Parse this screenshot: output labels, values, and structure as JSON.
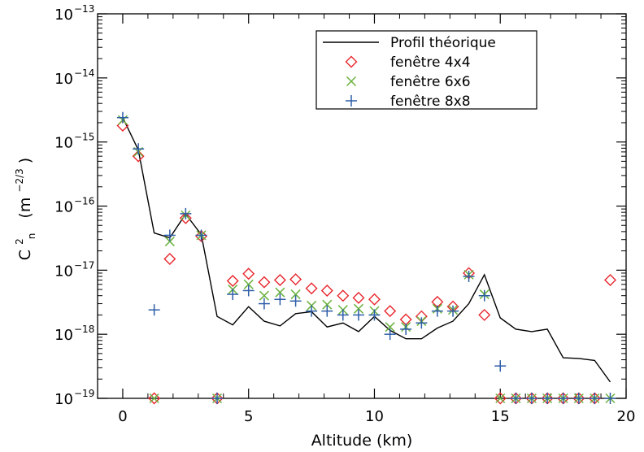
{
  "chart_data": {
    "type": "line",
    "title": "",
    "xlabel": "Altitude (km)",
    "ylabel": {
      "base": "C",
      "superscript": "2",
      "subscript": "n",
      "unit_prefix": "(m",
      "unit_exponent": "−2/3",
      "unit_suffix": ")"
    },
    "xlim": [
      -1,
      20
    ],
    "ylim": [
      1e-19,
      1e-13
    ],
    "yscale": "log",
    "xticks": [
      0,
      5,
      10,
      15,
      20
    ],
    "xtick_labels": [
      "0",
      "5",
      "10",
      "15",
      "20"
    ],
    "yticks": [
      {
        "value": 1e-19,
        "base": "10",
        "exponent": "−19"
      },
      {
        "value": 1e-18,
        "base": "10",
        "exponent": "−18"
      },
      {
        "value": 1e-17,
        "base": "10",
        "exponent": "−17"
      },
      {
        "value": 1e-16,
        "base": "10",
        "exponent": "−16"
      },
      {
        "value": 1e-15,
        "base": "10",
        "exponent": "−15"
      },
      {
        "value": 1e-14,
        "base": "10",
        "exponent": "−14"
      },
      {
        "value": 1e-13,
        "base": "10",
        "exponent": "−13"
      }
    ],
    "grid": false,
    "legend_position": "top-right",
    "series": [
      {
        "name": "Profil théorique",
        "kind": "line",
        "color": "#000000",
        "x": [
          0,
          0.62,
          1.25,
          1.87,
          2.5,
          3.12,
          3.75,
          4.37,
          5.0,
          5.62,
          6.25,
          6.87,
          7.5,
          8.12,
          8.75,
          9.37,
          10.0,
          10.62,
          11.25,
          11.87,
          12.5,
          13.12,
          13.75,
          14.37,
          15.0,
          15.62,
          16.25,
          16.87,
          17.5,
          18.12,
          18.75,
          19.37
        ],
        "y": [
          2.4e-15,
          7.5e-16,
          3.8e-17,
          3.2e-17,
          7.5e-17,
          3.6e-17,
          1.9e-18,
          1.4e-18,
          2.7e-18,
          1.6e-18,
          1.35e-18,
          2.1e-18,
          2.25e-18,
          1.3e-18,
          1.5e-18,
          1.1e-18,
          1.9e-18,
          1.15e-18,
          8.5e-19,
          8.5e-19,
          1.25e-18,
          1.6e-18,
          3e-18,
          8.5e-18,
          1.8e-18,
          1.2e-18,
          1.1e-18,
          1.2e-18,
          4.3e-19,
          4.2e-19,
          3.9e-19,
          1.8e-19
        ]
      },
      {
        "name": "fenêtre 4x4",
        "kind": "marker",
        "marker": "diamond",
        "color": "#e8262c",
        "x": [
          0,
          0.62,
          1.25,
          1.87,
          2.5,
          3.12,
          3.75,
          4.37,
          5.0,
          5.62,
          6.25,
          6.87,
          7.5,
          8.12,
          8.75,
          9.37,
          10.0,
          10.62,
          11.25,
          11.87,
          12.5,
          13.12,
          13.75,
          14.37,
          15.0,
          15.62,
          16.25,
          16.87,
          17.5,
          18.12,
          18.75,
          19.37
        ],
        "y": [
          1.8e-15,
          6e-16,
          1e-19,
          1.5e-17,
          6.5e-17,
          3.4e-17,
          1e-19,
          6.8e-18,
          8.8e-18,
          6.5e-18,
          7e-18,
          7.2e-18,
          5.2e-18,
          4.8e-18,
          4e-18,
          3.7e-18,
          3.5e-18,
          2.3e-18,
          1.7e-18,
          1.9e-18,
          3.2e-18,
          2.7e-18,
          9e-18,
          2e-18,
          1e-19,
          1e-19,
          1e-19,
          1e-19,
          1e-19,
          1e-19,
          1e-19,
          7e-18
        ]
      },
      {
        "name": "fenêtre 6x6",
        "kind": "marker",
        "marker": "x",
        "color": "#6ab23e",
        "x": [
          0,
          0.62,
          1.25,
          1.87,
          2.5,
          3.12,
          3.75,
          4.37,
          5.0,
          5.62,
          6.25,
          6.87,
          7.5,
          8.12,
          8.75,
          9.37,
          10.0,
          10.62,
          11.25,
          11.87,
          12.5,
          13.12,
          13.75,
          14.37,
          15.0,
          15.62,
          16.25,
          16.87,
          17.5,
          18.12,
          18.75,
          19.37
        ],
        "y": [
          2.2e-15,
          7e-16,
          1e-19,
          2.8e-17,
          7.2e-17,
          3.5e-17,
          1e-19,
          5e-18,
          6e-18,
          4e-18,
          4.5e-18,
          4.2e-18,
          2.8e-18,
          2.9e-18,
          2.4e-18,
          2.5e-18,
          2.3e-18,
          1.3e-18,
          1.3e-18,
          1.6e-18,
          2.5e-18,
          2.4e-18,
          8.5e-18,
          4.2e-18,
          1e-19,
          1e-19,
          1e-19,
          1e-19,
          1e-19,
          1e-19,
          1e-19,
          1e-19
        ]
      },
      {
        "name": "fenêtre 8x8",
        "kind": "marker",
        "marker": "plus",
        "color": "#2e5da8",
        "x": [
          0,
          0.62,
          1.25,
          1.87,
          2.5,
          3.12,
          3.75,
          4.37,
          5.0,
          5.62,
          6.25,
          6.87,
          7.5,
          8.12,
          8.75,
          9.37,
          10.0,
          10.62,
          11.25,
          11.87,
          12.5,
          13.12,
          13.75,
          14.37,
          15.0,
          15.62,
          16.25,
          16.87,
          17.5,
          18.12,
          18.75,
          19.37
        ],
        "y": [
          2.4e-15,
          7.8e-16,
          2.4e-18,
          3.5e-17,
          7.6e-17,
          3.5e-17,
          1e-19,
          4.2e-18,
          4.8e-18,
          3e-18,
          3.5e-18,
          3.3e-18,
          2.3e-18,
          2.3e-18,
          2e-18,
          2e-18,
          2e-18,
          1e-18,
          1.2e-18,
          1.5e-18,
          2.3e-18,
          2.3e-18,
          8e-18,
          4e-18,
          3.2e-19,
          1e-19,
          1e-19,
          1e-19,
          1e-19,
          1e-19,
          1e-19,
          1e-19
        ]
      }
    ]
  }
}
